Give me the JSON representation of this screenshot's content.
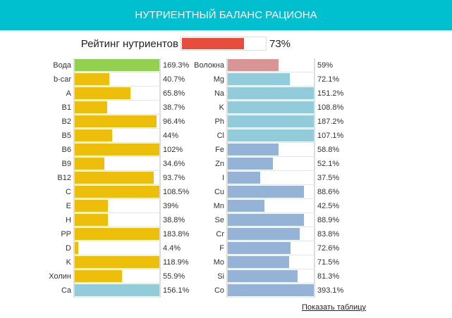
{
  "header": {
    "title": "НУТРИЕНТНЫЙ БАЛАНС РАЦИОНА"
  },
  "rating": {
    "label": "Рейтинг нутриентов",
    "value": 73,
    "value_text": "73%",
    "color": "#e84c3d"
  },
  "colors": {
    "water": "#92d050",
    "vitamin": "#eebf0a",
    "macro": "#92ccdb",
    "micro": "#95b3d7",
    "fiber": "#d99594"
  },
  "left": [
    {
      "name": "Вода",
      "value": 169.3,
      "text": "169.3%",
      "c": "water"
    },
    {
      "name": "b-car",
      "value": 40.7,
      "text": "40.7%",
      "c": "vitamin"
    },
    {
      "name": "A",
      "value": 65.8,
      "text": "65.8%",
      "c": "vitamin"
    },
    {
      "name": "B1",
      "value": 38.7,
      "text": "38.7%",
      "c": "vitamin"
    },
    {
      "name": "B2",
      "value": 96.4,
      "text": "96.4%",
      "c": "vitamin"
    },
    {
      "name": "B5",
      "value": 44,
      "text": "44%",
      "c": "vitamin"
    },
    {
      "name": "B6",
      "value": 102,
      "text": "102%",
      "c": "vitamin"
    },
    {
      "name": "B9",
      "value": 34.6,
      "text": "34.6%",
      "c": "vitamin"
    },
    {
      "name": "B12",
      "value": 93.7,
      "text": "93.7%",
      "c": "vitamin"
    },
    {
      "name": "C",
      "value": 108.5,
      "text": "108.5%",
      "c": "vitamin"
    },
    {
      "name": "E",
      "value": 39,
      "text": "39%",
      "c": "vitamin"
    },
    {
      "name": "H",
      "value": 38.8,
      "text": "38.8%",
      "c": "vitamin"
    },
    {
      "name": "PP",
      "value": 183.8,
      "text": "183.8%",
      "c": "vitamin"
    },
    {
      "name": "D",
      "value": 4.4,
      "text": "4.4%",
      "c": "vitamin"
    },
    {
      "name": "K",
      "value": 118.9,
      "text": "118.9%",
      "c": "vitamin"
    },
    {
      "name": "Холин",
      "value": 55.9,
      "text": "55.9%",
      "c": "vitamin"
    },
    {
      "name": "Ca",
      "value": 156.1,
      "text": "156.1%",
      "c": "macro"
    }
  ],
  "right": [
    {
      "name": "Волокна",
      "value": 59,
      "text": "59%",
      "c": "fiber"
    },
    {
      "name": "Mg",
      "value": 72.1,
      "text": "72.1%",
      "c": "macro"
    },
    {
      "name": "Na",
      "value": 151.2,
      "text": "151.2%",
      "c": "macro"
    },
    {
      "name": "K",
      "value": 108.8,
      "text": "108.8%",
      "c": "macro"
    },
    {
      "name": "Ph",
      "value": 187.2,
      "text": "187.2%",
      "c": "macro"
    },
    {
      "name": "Cl",
      "value": 107.1,
      "text": "107.1%",
      "c": "macro"
    },
    {
      "name": "Fe",
      "value": 58.8,
      "text": "58.8%",
      "c": "micro"
    },
    {
      "name": "Zn",
      "value": 52.1,
      "text": "52.1%",
      "c": "micro"
    },
    {
      "name": "I",
      "value": 37.5,
      "text": "37.5%",
      "c": "micro"
    },
    {
      "name": "Cu",
      "value": 88.6,
      "text": "88.6%",
      "c": "micro"
    },
    {
      "name": "Mn",
      "value": 42.5,
      "text": "42.5%",
      "c": "micro"
    },
    {
      "name": "Se",
      "value": 88.9,
      "text": "88.9%",
      "c": "micro"
    },
    {
      "name": "Cr",
      "value": 83.8,
      "text": "83.8%",
      "c": "micro"
    },
    {
      "name": "F",
      "value": 72.6,
      "text": "72.6%",
      "c": "micro"
    },
    {
      "name": "Mo",
      "value": 71.5,
      "text": "71.5%",
      "c": "micro"
    },
    {
      "name": "Si",
      "value": 81.3,
      "text": "81.3%",
      "c": "micro"
    },
    {
      "name": "Co",
      "value": 393.1,
      "text": "393.1%",
      "c": "micro"
    }
  ],
  "link": {
    "label": "Показать таблицу"
  }
}
